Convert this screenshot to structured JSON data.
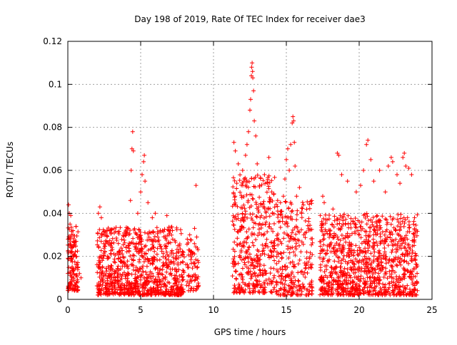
{
  "chart_data": {
    "type": "scatter",
    "title": "Day 198 of 2019, Rate Of TEC Index for receiver dae3",
    "xlabel": "GPS time / hours",
    "ylabel": "ROTI / TECUs",
    "xlim": [
      0,
      25
    ],
    "ylim": [
      0,
      0.12
    ],
    "xticks": [
      0,
      5,
      10,
      15,
      20,
      25
    ],
    "xtick_labels": [
      "0",
      "5",
      "10",
      "15",
      "20",
      "25"
    ],
    "yticks": [
      0,
      0.02,
      0.04,
      0.06,
      0.08,
      0.1,
      0.12
    ],
    "ytick_labels": [
      "0",
      "0.02",
      "0.04",
      "0.06",
      "0.08",
      "0.1",
      "0.12"
    ],
    "grid": true,
    "marker": "+",
    "color": "#ff0000",
    "series": [
      {
        "points": [
          [
            0.05,
            0.044
          ],
          [
            0.1,
            0.04
          ],
          [
            0.15,
            0.035
          ],
          [
            0.2,
            0.039
          ],
          [
            0.25,
            0.03
          ],
          [
            0.3,
            0.024
          ],
          [
            0.35,
            0.032
          ],
          [
            0.4,
            0.025
          ],
          [
            0.6,
            0.02
          ],
          [
            0.7,
            0.015
          ],
          [
            0.8,
            0.012
          ],
          [
            0.9,
            0.01
          ],
          [
            2.1,
            0.04
          ],
          [
            2.2,
            0.043
          ],
          [
            2.3,
            0.038
          ],
          [
            2.5,
            0.03
          ],
          [
            3.0,
            0.026
          ],
          [
            3.5,
            0.022
          ],
          [
            4.0,
            0.03
          ],
          [
            4.3,
            0.046
          ],
          [
            4.35,
            0.06
          ],
          [
            4.4,
            0.07
          ],
          [
            4.45,
            0.078
          ],
          [
            4.5,
            0.069
          ],
          [
            4.8,
            0.04
          ],
          [
            5.0,
            0.05
          ],
          [
            5.1,
            0.058
          ],
          [
            5.2,
            0.064
          ],
          [
            5.25,
            0.067
          ],
          [
            5.3,
            0.055
          ],
          [
            5.5,
            0.045
          ],
          [
            5.8,
            0.038
          ],
          [
            6.0,
            0.04
          ],
          [
            6.5,
            0.032
          ],
          [
            6.8,
            0.039
          ],
          [
            7.2,
            0.028
          ],
          [
            7.6,
            0.022
          ],
          [
            8.2,
            0.028
          ],
          [
            8.4,
            0.022
          ],
          [
            8.7,
            0.033
          ],
          [
            8.8,
            0.053
          ],
          [
            8.85,
            0.029
          ],
          [
            11.4,
            0.073
          ],
          [
            11.5,
            0.069
          ],
          [
            11.6,
            0.054
          ],
          [
            11.7,
            0.063
          ],
          [
            12.0,
            0.06
          ],
          [
            12.2,
            0.067
          ],
          [
            12.3,
            0.072
          ],
          [
            12.4,
            0.078
          ],
          [
            12.5,
            0.088
          ],
          [
            12.55,
            0.093
          ],
          [
            12.6,
            0.104
          ],
          [
            12.62,
            0.108
          ],
          [
            12.65,
            0.11
          ],
          [
            12.68,
            0.106
          ],
          [
            12.7,
            0.103
          ],
          [
            12.75,
            0.097
          ],
          [
            12.8,
            0.083
          ],
          [
            12.9,
            0.076
          ],
          [
            13.0,
            0.063
          ],
          [
            13.5,
            0.058
          ],
          [
            13.8,
            0.066
          ],
          [
            14.0,
            0.05
          ],
          [
            14.4,
            0.046
          ],
          [
            14.6,
            0.045
          ],
          [
            14.8,
            0.048
          ],
          [
            14.9,
            0.056
          ],
          [
            15.0,
            0.065
          ],
          [
            15.1,
            0.07
          ],
          [
            15.2,
            0.06
          ],
          [
            15.3,
            0.072
          ],
          [
            15.4,
            0.082
          ],
          [
            15.45,
            0.085
          ],
          [
            15.5,
            0.083
          ],
          [
            15.55,
            0.073
          ],
          [
            15.6,
            0.062
          ],
          [
            15.7,
            0.048
          ],
          [
            15.9,
            0.052
          ],
          [
            16.2,
            0.03
          ],
          [
            16.4,
            0.022
          ],
          [
            16.6,
            0.019
          ],
          [
            17.5,
            0.048
          ],
          [
            17.6,
            0.045
          ],
          [
            17.8,
            0.037
          ],
          [
            18.2,
            0.042
          ],
          [
            18.5,
            0.068
          ],
          [
            18.6,
            0.067
          ],
          [
            18.8,
            0.058
          ],
          [
            19.2,
            0.055
          ],
          [
            19.8,
            0.05
          ],
          [
            20.1,
            0.053
          ],
          [
            20.3,
            0.06
          ],
          [
            20.5,
            0.072
          ],
          [
            20.6,
            0.074
          ],
          [
            20.8,
            0.065
          ],
          [
            21.0,
            0.055
          ],
          [
            21.4,
            0.06
          ],
          [
            21.8,
            0.05
          ],
          [
            22.0,
            0.062
          ],
          [
            22.2,
            0.066
          ],
          [
            22.3,
            0.064
          ],
          [
            22.6,
            0.058
          ],
          [
            22.8,
            0.054
          ],
          [
            23.0,
            0.066
          ],
          [
            23.1,
            0.068
          ],
          [
            23.2,
            0.062
          ],
          [
            23.4,
            0.061
          ],
          [
            23.6,
            0.058
          ],
          [
            23.8,
            0.038
          ]
        ],
        "clusters": [
          {
            "x": [
              0.0,
              0.7
            ],
            "y": [
              0.004,
              0.034
            ],
            "n": 130
          },
          {
            "x": [
              2.0,
              8.0
            ],
            "y": [
              0.002,
              0.034
            ],
            "n": 900
          },
          {
            "x": [
              8.1,
              9.0
            ],
            "y": [
              0.004,
              0.03
            ],
            "n": 70
          },
          {
            "x": [
              11.3,
              14.2
            ],
            "y": [
              0.003,
              0.058
            ],
            "n": 420
          },
          {
            "x": [
              14.3,
              16.8
            ],
            "y": [
              0.002,
              0.046
            ],
            "n": 280
          },
          {
            "x": [
              17.3,
              24.0
            ],
            "y": [
              0.002,
              0.04
            ],
            "n": 1000
          }
        ]
      }
    ]
  }
}
